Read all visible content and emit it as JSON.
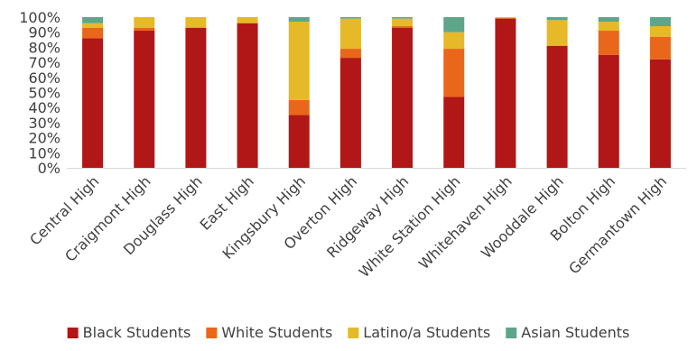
{
  "chart_data": {
    "type": "bar",
    "stacked": true,
    "percent": true,
    "categories": [
      "Central High",
      "Craigmont High",
      "Douglass High",
      "East High",
      "Kingsbury High",
      "Overton High",
      "Ridgeway High",
      "White Station High",
      "Whitehaven High",
      "Wooddale High",
      "Bolton High",
      "Germantown High"
    ],
    "series": [
      {
        "name": "Black Students",
        "color": "#B01716",
        "values": [
          86,
          91,
          93,
          96,
          35,
          73,
          93,
          47,
          99,
          81,
          75,
          72
        ]
      },
      {
        "name": "White Students",
        "color": "#E8671A",
        "values": [
          7,
          2,
          0,
          0,
          10,
          6,
          1,
          32,
          0.5,
          0,
          16,
          15
        ]
      },
      {
        "name": "Latino/a Students",
        "color": "#E6B928",
        "values": [
          3,
          7,
          7,
          4,
          52,
          20,
          5,
          11,
          0.5,
          17,
          6,
          7
        ]
      },
      {
        "name": "Asian Students",
        "color": "#5FA58A",
        "values": [
          4,
          0,
          0,
          0,
          3,
          1,
          1,
          10,
          0,
          2,
          3,
          6
        ]
      }
    ],
    "ylim": [
      0,
      100
    ],
    "yticks": [
      "0%",
      "10%",
      "20%",
      "30%",
      "40%",
      "50%",
      "60%",
      "70%",
      "80%",
      "90%",
      "100%"
    ],
    "grid": false,
    "legend": "bottom",
    "title": "",
    "xlabel": "",
    "ylabel": ""
  }
}
